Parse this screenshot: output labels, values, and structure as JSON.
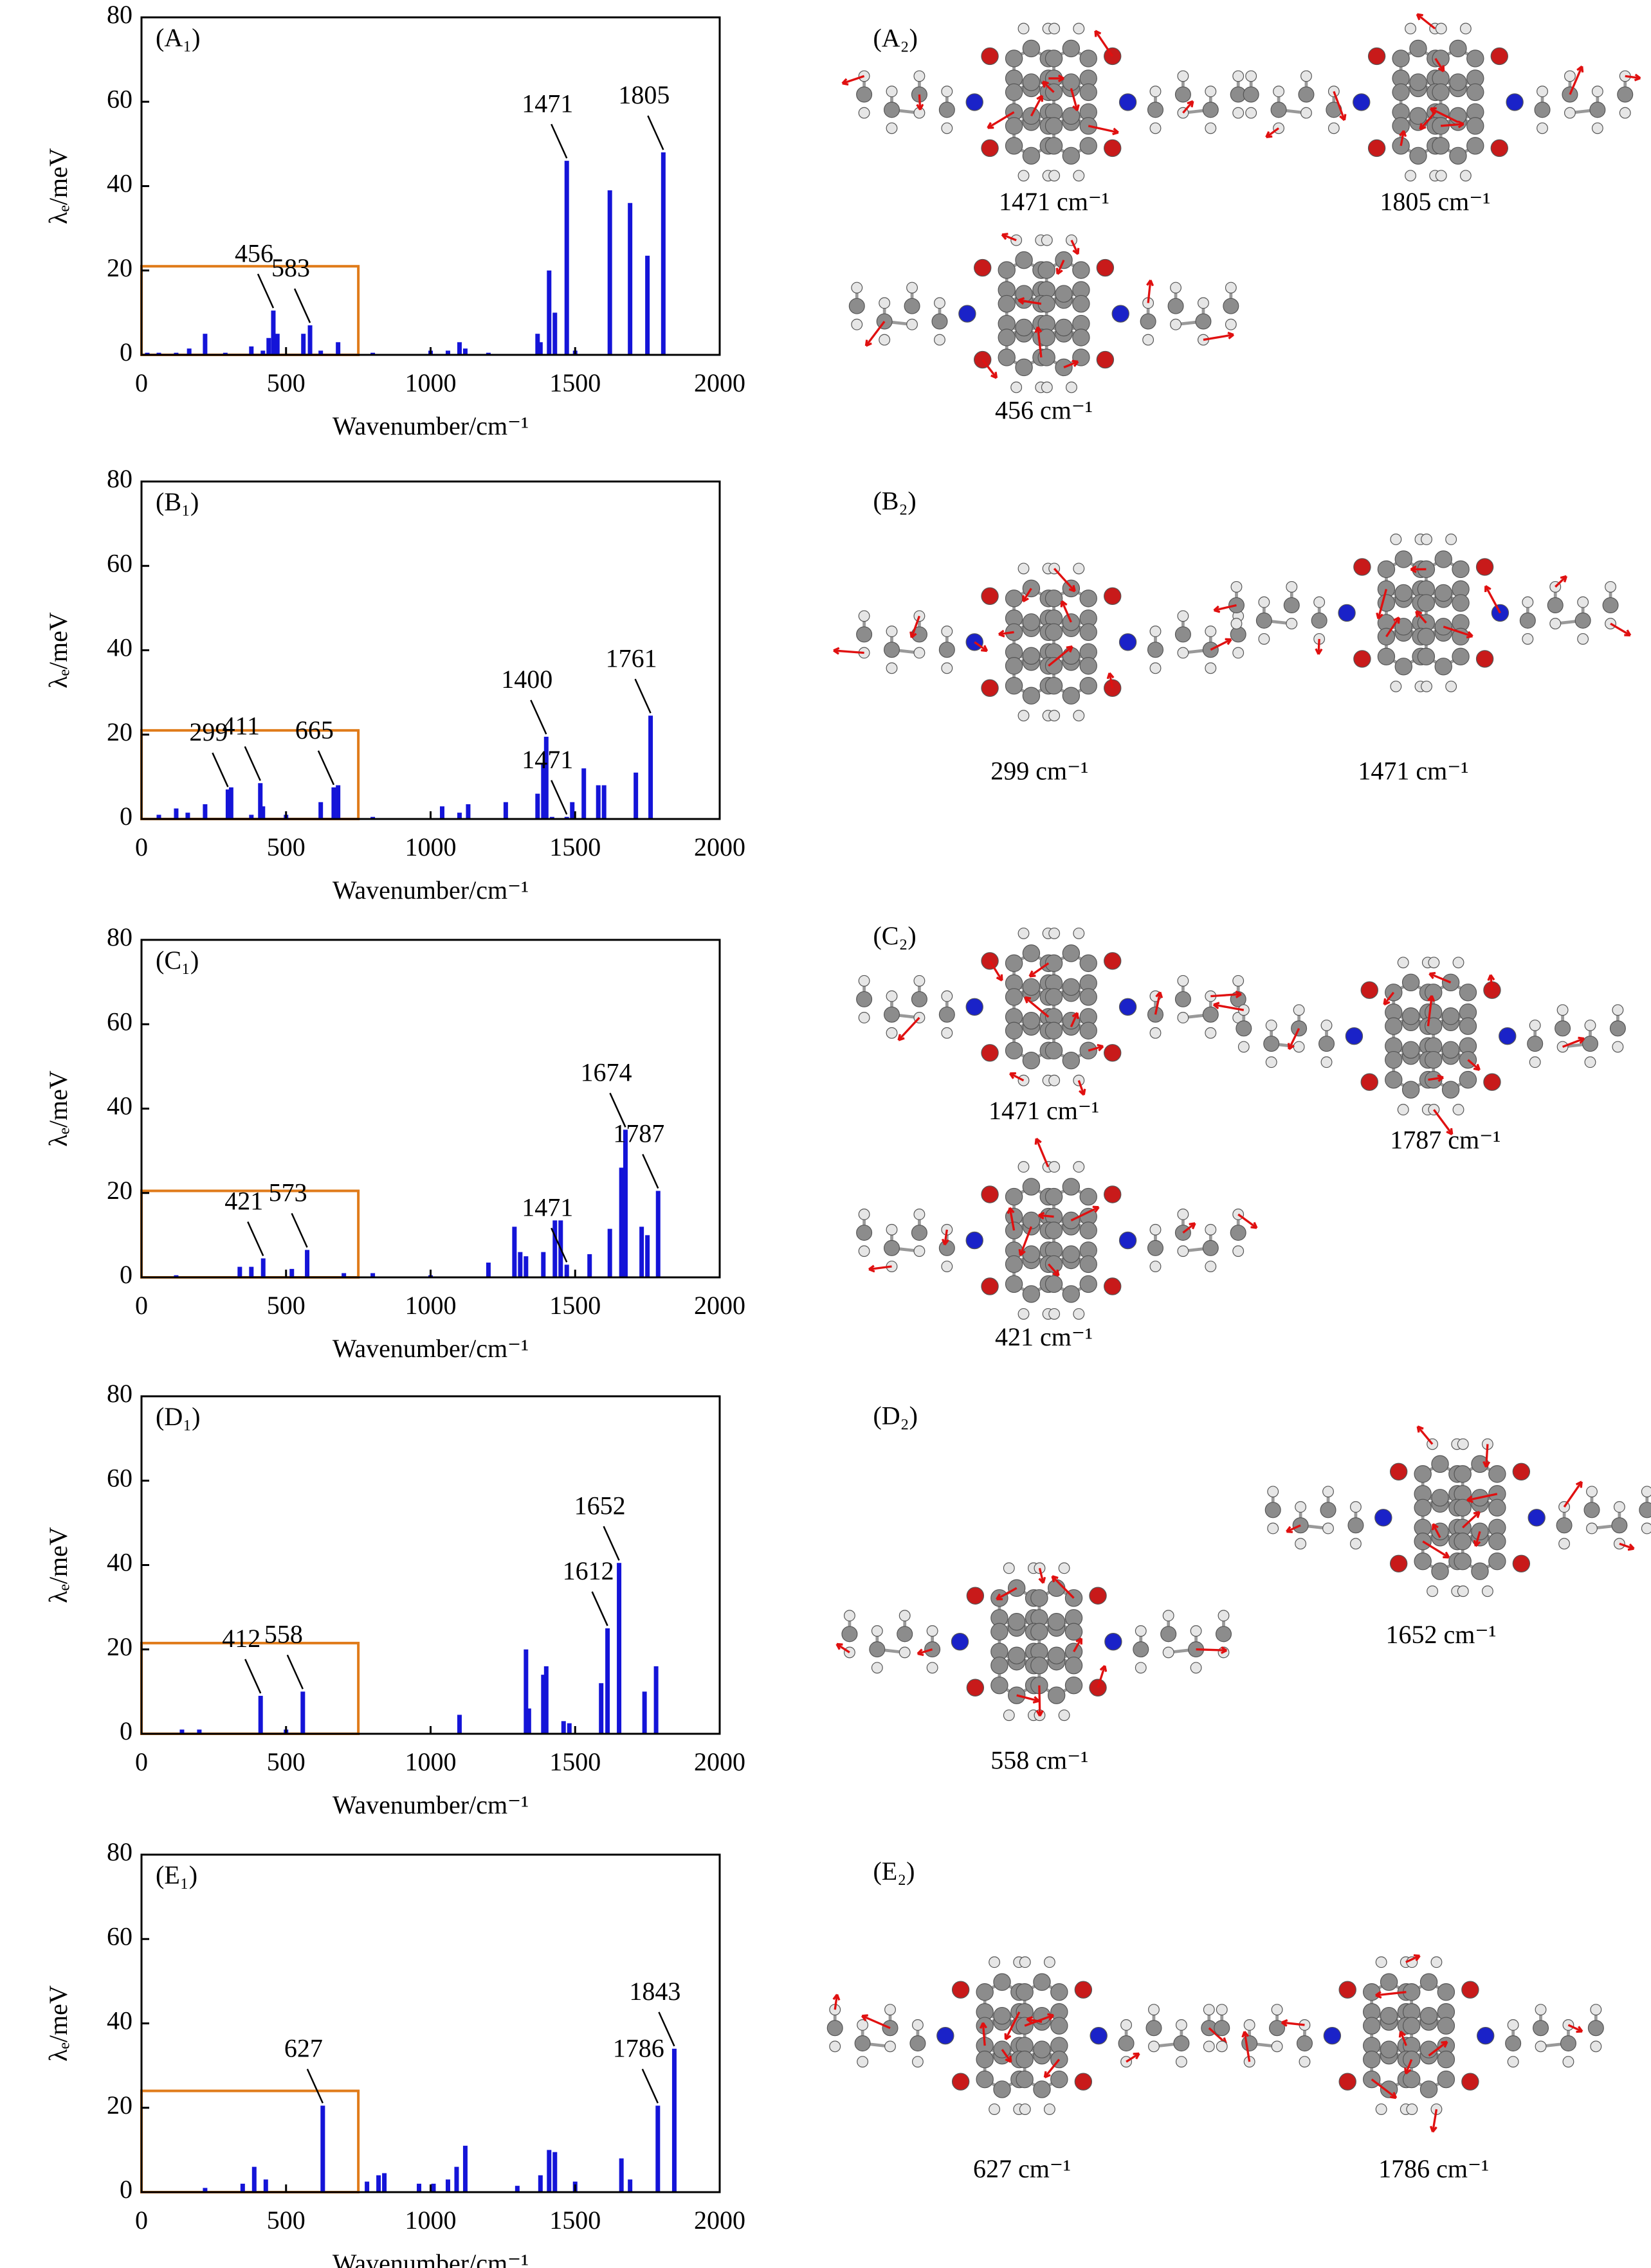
{
  "chart_data": [
    {
      "type": "bar",
      "panel_label": "(A₁)",
      "xlabel": "Wavenumber/cm⁻¹",
      "ylabel": "λₑ/meV",
      "color": "#1414d8",
      "xlim": [
        0,
        2000
      ],
      "ylim": [
        0,
        80
      ],
      "xticks": [
        0,
        500,
        1000,
        1500,
        2000
      ],
      "yticks": [
        0,
        20,
        40,
        60,
        80
      ],
      "x": [
        20,
        60,
        120,
        165,
        220,
        290,
        380,
        420,
        440,
        456,
        470,
        560,
        583,
        620,
        680,
        800,
        1000,
        1060,
        1100,
        1120,
        1200,
        1370,
        1380,
        1410,
        1430,
        1471,
        1500,
        1620,
        1690,
        1750,
        1805
      ],
      "values": [
        0.5,
        0.5,
        0.5,
        1.5,
        5,
        0.5,
        2,
        1,
        4,
        10.5,
        5,
        5,
        7,
        1,
        3,
        0.5,
        1,
        1,
        3,
        1.5,
        0.5,
        5,
        3,
        20,
        10,
        46,
        1,
        39,
        36,
        23.5,
        48
      ],
      "highlight": {
        "xlim": [
          0,
          750
        ],
        "ylim": [
          0,
          21
        ],
        "color": "#e07b1a"
      },
      "annotations": [
        {
          "label": "456",
          "x": 456,
          "y": 10.5
        },
        {
          "label": "583",
          "x": 583,
          "y": 7
        },
        {
          "label": "1471",
          "x": 1471,
          "y": 46
        },
        {
          "label": "1805",
          "x": 1805,
          "y": 48
        }
      ]
    },
    {
      "type": "bar",
      "panel_label": "(B₁)",
      "xlabel": "Wavenumber/cm⁻¹",
      "ylabel": "λₑ/meV",
      "color": "#1414d8",
      "xlim": [
        0,
        2000
      ],
      "ylim": [
        0,
        80
      ],
      "xticks": [
        0,
        500,
        1000,
        1500,
        2000
      ],
      "yticks": [
        0,
        20,
        40,
        60,
        80
      ],
      "x": [
        60,
        120,
        160,
        220,
        299,
        310,
        380,
        411,
        420,
        500,
        620,
        665,
        680,
        800,
        1040,
        1100,
        1130,
        1260,
        1370,
        1390,
        1400,
        1420,
        1471,
        1490,
        1530,
        1580,
        1600,
        1710,
        1761
      ],
      "values": [
        1,
        2.5,
        1.5,
        3.5,
        7,
        7.5,
        1,
        8.5,
        3,
        1,
        4,
        7.5,
        8,
        0.5,
        3,
        1.5,
        3.5,
        4,
        6,
        13,
        19.5,
        0.5,
        0.5,
        4,
        12,
        8,
        8,
        11,
        24.5
      ],
      "highlight": {
        "xlim": [
          0,
          750
        ],
        "ylim": [
          0,
          21
        ],
        "color": "#e07b1a"
      },
      "annotations": [
        {
          "label": "299",
          "x": 299,
          "y": 7
        },
        {
          "label": "411",
          "x": 411,
          "y": 8.5
        },
        {
          "label": "665",
          "x": 665,
          "y": 7.5
        },
        {
          "label": "1400",
          "x": 1400,
          "y": 19.5
        },
        {
          "label": "1471",
          "x": 1471,
          "y": 0.5
        },
        {
          "label": "1761",
          "x": 1761,
          "y": 24.5
        }
      ]
    },
    {
      "type": "bar",
      "panel_label": "(C₁)",
      "xlabel": "Wavenumber/cm⁻¹",
      "ylabel": "λₑ/meV",
      "color": "#1414d8",
      "xlim": [
        0,
        2000
      ],
      "ylim": [
        0,
        80
      ],
      "xticks": [
        0,
        500,
        1000,
        1500,
        2000
      ],
      "yticks": [
        0,
        20,
        40,
        60,
        80
      ],
      "x": [
        120,
        340,
        380,
        421,
        520,
        573,
        700,
        800,
        1000,
        1200,
        1290,
        1310,
        1330,
        1390,
        1430,
        1450,
        1471,
        1550,
        1620,
        1660,
        1674,
        1730,
        1750,
        1787
      ],
      "values": [
        0.5,
        2.5,
        2.5,
        4.5,
        2,
        6.5,
        1,
        1,
        0.5,
        3.5,
        12,
        6,
        5,
        6,
        13.5,
        13.5,
        3,
        5.5,
        11.5,
        26,
        35,
        12,
        10,
        20.5
      ],
      "highlight": {
        "xlim": [
          0,
          750
        ],
        "ylim": [
          0,
          20.5
        ],
        "color": "#e07b1a"
      },
      "annotations": [
        {
          "label": "421",
          "x": 421,
          "y": 4.5
        },
        {
          "label": "573",
          "x": 573,
          "y": 6.5
        },
        {
          "label": "1471",
          "x": 1471,
          "y": 3
        },
        {
          "label": "1674",
          "x": 1674,
          "y": 35
        },
        {
          "label": "1787",
          "x": 1787,
          "y": 20.5
        }
      ]
    },
    {
      "type": "bar",
      "panel_label": "(D₁)",
      "xlabel": "Wavenumber/cm⁻¹",
      "ylabel": "λₑ/meV",
      "color": "#1414d8",
      "xlim": [
        0,
        2000
      ],
      "ylim": [
        0,
        80
      ],
      "xticks": [
        0,
        500,
        1000,
        1500,
        2000
      ],
      "yticks": [
        0,
        20,
        40,
        60,
        80
      ],
      "x": [
        140,
        200,
        412,
        500,
        558,
        1100,
        1330,
        1340,
        1390,
        1400,
        1460,
        1480,
        1590,
        1612,
        1652,
        1740,
        1780
      ],
      "values": [
        1,
        1,
        9,
        1,
        10,
        4.5,
        20,
        6,
        14,
        16,
        3,
        2.5,
        12,
        25,
        40.5,
        10,
        16
      ],
      "highlight": {
        "xlim": [
          0,
          750
        ],
        "ylim": [
          0,
          21.5
        ],
        "color": "#e07b1a"
      },
      "annotations": [
        {
          "label": "412",
          "x": 412,
          "y": 9
        },
        {
          "label": "558",
          "x": 558,
          "y": 10
        },
        {
          "label": "1612",
          "x": 1612,
          "y": 25
        },
        {
          "label": "1652",
          "x": 1652,
          "y": 40.5
        }
      ]
    },
    {
      "type": "bar",
      "panel_label": "(E₁)",
      "xlabel": "Wavenumber/cm⁻¹",
      "ylabel": "λₑ/meV",
      "color": "#1414d8",
      "xlim": [
        0,
        2000
      ],
      "ylim": [
        0,
        80
      ],
      "xticks": [
        0,
        500,
        1000,
        1500,
        2000
      ],
      "yticks": [
        0,
        20,
        40,
        60,
        80
      ],
      "x": [
        220,
        350,
        390,
        430,
        627,
        780,
        820,
        840,
        960,
        1010,
        1060,
        1090,
        1120,
        1300,
        1380,
        1410,
        1430,
        1500,
        1660,
        1690,
        1786,
        1843
      ],
      "values": [
        1,
        2,
        6,
        3,
        20.5,
        2.5,
        4,
        4.5,
        2,
        2,
        3,
        6,
        11,
        1.5,
        4,
        10,
        9.5,
        2.5,
        8,
        3,
        20.5,
        34
      ],
      "highlight": {
        "xlim": [
          0,
          750
        ],
        "ylim": [
          0,
          24
        ],
        "color": "#e07b1a"
      },
      "annotations": [
        {
          "label": "627",
          "x": 627,
          "y": 20.5
        },
        {
          "label": "1786",
          "x": 1786,
          "y": 20.5
        },
        {
          "label": "1843",
          "x": 1843,
          "y": 34
        }
      ]
    }
  ],
  "molecule_panels": [
    {
      "label": "(A₂)",
      "captions": [
        "1471 cm⁻¹",
        "1805 cm⁻¹",
        "456 cm⁻¹"
      ]
    },
    {
      "label": "(B₂)",
      "captions": [
        "299 cm⁻¹",
        "1471 cm⁻¹"
      ]
    },
    {
      "label": "(C₂)",
      "captions": [
        "1471 cm⁻¹",
        "1787 cm⁻¹",
        "421 cm⁻¹"
      ]
    },
    {
      "label": "(D₂)",
      "captions": [
        "1652 cm⁻¹",
        "558 cm⁻¹"
      ]
    },
    {
      "label": "(E₂)",
      "captions": [
        "627 cm⁻¹",
        "1786 cm⁻¹"
      ]
    }
  ]
}
